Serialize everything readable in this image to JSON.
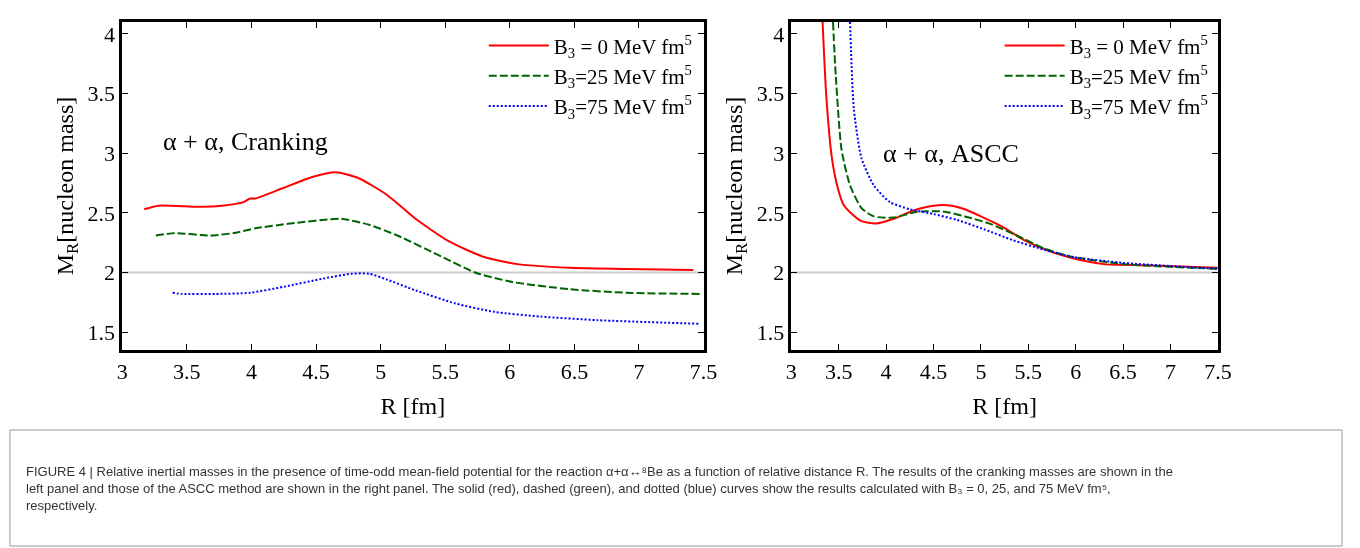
{
  "chart_data": [
    {
      "type": "line",
      "xlabel": "R [fm]",
      "ylabel": "M$_{R}$[nucleon mass]",
      "xlim": [
        3,
        7.5
      ],
      "ylim": [
        1.35,
        4.1
      ],
      "xticks": [
        3,
        3.5,
        4,
        4.5,
        5,
        5.5,
        6,
        6.5,
        7,
        7.5
      ],
      "yticks": [
        1.5,
        2,
        2.5,
        3,
        3.5,
        4
      ],
      "grid": false,
      "legend": "top right",
      "marker": "none",
      "annotations": [
        "α + α, Cranking"
      ],
      "ref_lines": [
        {
          "axis": "y",
          "value": 2,
          "label": null,
          "color": "#cccccc",
          "line_style": "solid"
        }
      ],
      "series": [
        {
          "name": "B$_{3}$ = 0 MeV fm$^{5}$",
          "color": "#ff0000",
          "line_style": "solid",
          "x": [
            3.17,
            3.28,
            3.59,
            3.77,
            3.94,
            3.99,
            4.03,
            4.25,
            4.47,
            4.65,
            4.83,
            5.05,
            5.27,
            5.53,
            5.8,
            6.06,
            6.46,
            6.9,
            7.42
          ],
          "values": [
            2.53,
            2.56,
            2.55,
            2.56,
            2.59,
            2.62,
            2.62,
            2.71,
            2.8,
            2.84,
            2.79,
            2.65,
            2.45,
            2.26,
            2.13,
            2.07,
            2.04,
            2.03,
            2.02
          ]
        },
        {
          "name": "B$_{3}$=25 MeV fm$^{5}$",
          "color": "#006400",
          "line_style": "dashed",
          "x": [
            3.26,
            3.41,
            3.68,
            3.86,
            4.03,
            4.3,
            4.69,
            4.91,
            5.13,
            5.44,
            5.73,
            6.02,
            6.46,
            6.9,
            7.47
          ],
          "values": [
            2.31,
            2.33,
            2.31,
            2.33,
            2.37,
            2.41,
            2.45,
            2.4,
            2.31,
            2.15,
            2.0,
            1.92,
            1.86,
            1.83,
            1.82
          ]
        },
        {
          "name": "B$_{3}$=75 MeV fm$^{5}$",
          "color": "#0000ff",
          "line_style": "dotted",
          "x": [
            3.39,
            3.46,
            3.72,
            3.99,
            4.25,
            4.56,
            4.78,
            4.91,
            5.05,
            5.27,
            5.58,
            5.88,
            6.24,
            6.68,
            7.46
          ],
          "values": [
            1.83,
            1.82,
            1.82,
            1.83,
            1.88,
            1.95,
            1.99,
            1.99,
            1.94,
            1.85,
            1.74,
            1.67,
            1.63,
            1.6,
            1.57
          ]
        }
      ]
    },
    {
      "type": "line",
      "xlabel": "R [fm]",
      "ylabel": "M$_{R}$[nucleon mass]",
      "xlim": [
        3,
        7.5
      ],
      "ylim": [
        1.35,
        4.1
      ],
      "xticks": [
        3,
        3.5,
        4,
        4.5,
        5,
        5.5,
        6,
        6.5,
        7,
        7.5
      ],
      "yticks": [
        1.5,
        2,
        2.5,
        3,
        3.5,
        4
      ],
      "grid": false,
      "legend": "top right",
      "marker": "none",
      "annotations": [
        "α + α, ASCC",
        "FIGURE 4 | Relative inertial masses in the presence of time-odd mean-field potential for the reaction α+α↔⁸Be as a function of relative distance R. The results of the cranking masses are shown in the left panel and those of the ASCC method are shown in the right panel. The solid (red), dashed (green), and dotted (blue) curves show the results calculated with B₃ = 0, 25, and 75 MeV fm⁵, respectively."
      ],
      "ref_lines": [
        {
          "axis": "y",
          "value": 2,
          "label": null,
          "color": "#cccccc",
          "line_style": "solid"
        }
      ],
      "series": [
        {
          "name": "B$_{3}$ = 0 MeV fm$^{5}$",
          "color": "#ff0000",
          "line_style": "solid",
          "x": [
            3.33,
            3.37,
            3.43,
            3.49,
            3.55,
            3.64,
            3.74,
            3.89,
            4.08,
            4.29,
            4.5,
            4.69,
            4.83,
            5.0,
            5.21,
            5.46,
            5.72,
            5.97,
            6.3,
            6.72,
            7.5
          ],
          "values": [
            4.1,
            3.47,
            2.95,
            2.71,
            2.57,
            2.49,
            2.43,
            2.41,
            2.45,
            2.52,
            2.56,
            2.56,
            2.53,
            2.47,
            2.39,
            2.27,
            2.18,
            2.12,
            2.07,
            2.06,
            2.04
          ]
        },
        {
          "name": "B$_{3}$=25 MeV fm$^{5}$",
          "color": "#006400",
          "line_style": "dashed",
          "x": [
            3.44,
            3.47,
            3.53,
            3.62,
            3.74,
            3.87,
            4.08,
            4.33,
            4.62,
            4.83,
            5.09,
            5.38,
            5.67,
            5.97,
            6.51,
            7.5
          ],
          "values": [
            4.1,
            3.64,
            3.03,
            2.73,
            2.54,
            2.47,
            2.46,
            2.51,
            2.51,
            2.47,
            2.41,
            2.31,
            2.2,
            2.13,
            2.07,
            2.03
          ]
        },
        {
          "name": "B$_{3}$=75 MeV fm$^{5}$",
          "color": "#0000ff",
          "line_style": "dotted",
          "x": [
            3.62,
            3.66,
            3.74,
            3.87,
            4.04,
            4.25,
            4.5,
            4.75,
            5.04,
            5.34,
            5.67,
            5.97,
            6.51,
            7.5
          ],
          "values": [
            4.1,
            3.37,
            2.96,
            2.73,
            2.59,
            2.53,
            2.49,
            2.44,
            2.36,
            2.27,
            2.19,
            2.13,
            2.08,
            2.03
          ]
        }
      ]
    }
  ]
}
